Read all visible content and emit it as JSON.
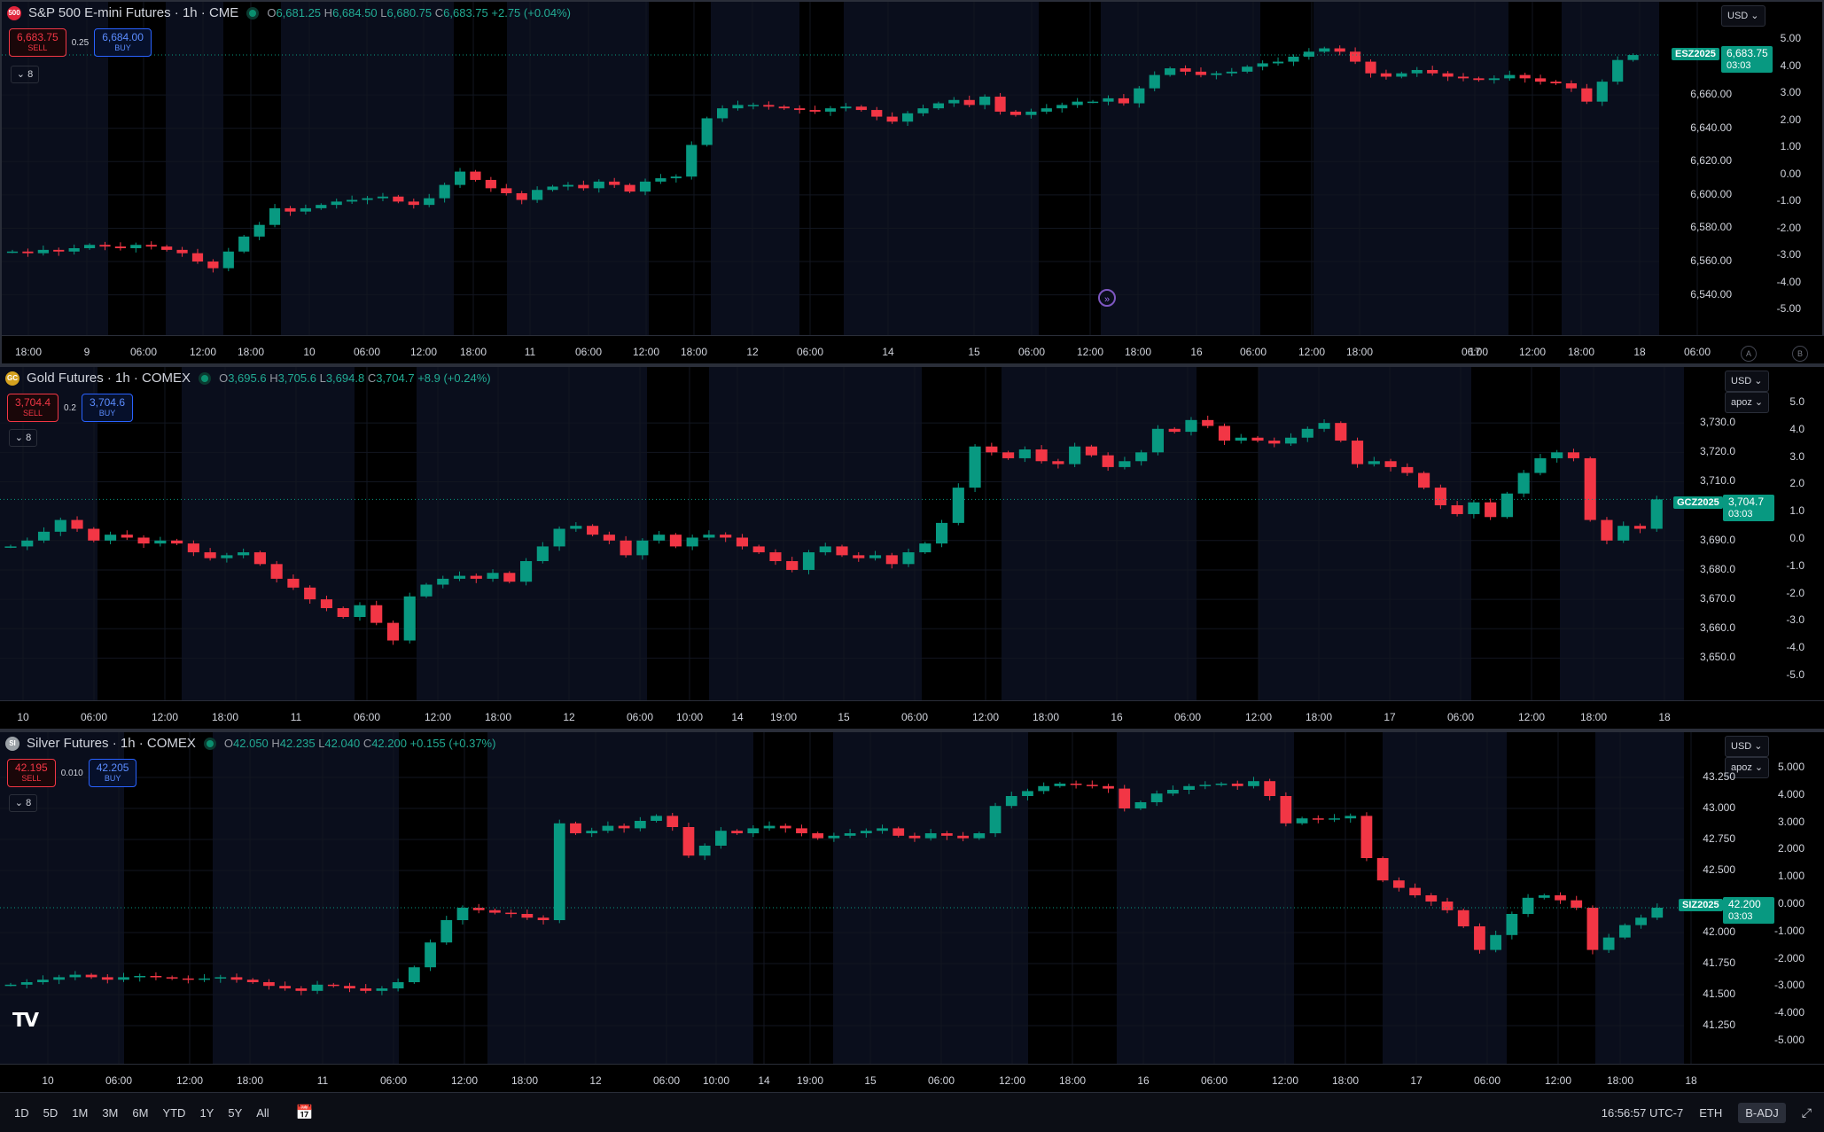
{
  "panes": [
    {
      "id": "es",
      "title": "S&P 500 E-mini Futures · 1h · CME",
      "icon_text": "500",
      "icon_color": "#e0243b",
      "open_label": "O",
      "open": "6,681.25",
      "high_label": "H",
      "high": "6,684.50",
      "low_label": "L",
      "low": "6,680.75",
      "close_label": "C",
      "close": "6,683.75",
      "change": "+2.75 (+0.04%)",
      "sell_price": "6,683.75",
      "sell_label": "SELL",
      "buy_price": "6,684.00",
      "buy_label": "BUY",
      "spread": "0.25",
      "collapse_label": "8",
      "currency": "USD",
      "symbol_code": "ESZ2025",
      "last_price": "6,683.75",
      "countdown": "03:03",
      "price_ticks": [
        "6,660.00",
        "6,640.00",
        "6,620.00",
        "6,600.00",
        "6,580.00",
        "6,560.00",
        "6,540.00"
      ],
      "pct_ticks": [
        "5.00",
        "4.00",
        "3.00",
        "2.00",
        "1.00",
        "0.00",
        "-1.00",
        "-2.00",
        "-3.00",
        "-4.00",
        "-5.00"
      ],
      "x_labels": [
        "18:00",
        "9",
        "06:00",
        "12:00",
        "18:00",
        "10",
        "06:00",
        "12:00",
        "18:00",
        "11",
        "06:00",
        "12:00",
        "18:00",
        "12",
        "06:00",
        "14",
        "15",
        "06:00",
        "12:00",
        "18:00",
        "16",
        "06:00",
        "12:00",
        "18:00",
        "17",
        "06:00",
        "12:00",
        "18:00",
        "18",
        "06:00"
      ],
      "corner_a": "A",
      "corner_b": "B",
      "series": [
        6566,
        6565,
        6567,
        6566,
        6568,
        6570,
        6569,
        6568,
        6570,
        6569,
        6567,
        6565,
        6560,
        6556,
        6566,
        6575,
        6582,
        6592,
        6590,
        6592,
        6594,
        6596,
        6597,
        6598,
        6599,
        6596,
        6594,
        6598,
        6606,
        6614,
        6609,
        6604,
        6601,
        6597,
        6603,
        6605,
        6606,
        6604,
        6608,
        6606,
        6602,
        6608,
        6610,
        6611,
        6630,
        6646,
        6652,
        6654,
        6654,
        6653,
        6652,
        6651,
        6650,
        6652,
        6653,
        6651,
        6647,
        6644,
        6649,
        6652,
        6655,
        6657,
        6654,
        6659,
        6650,
        6648,
        6650,
        6652,
        6654,
        6656,
        6656,
        6658,
        6655,
        6664,
        6672,
        6676,
        6674,
        6672,
        6673,
        6674,
        6677,
        6679,
        6680,
        6683,
        6686,
        6688,
        6686,
        6680,
        6673,
        6671,
        6673,
        6675,
        6673,
        6671,
        6670,
        6669,
        6670,
        6672,
        6670,
        6668,
        6667,
        6664,
        6656,
        6668,
        6681,
        6684
      ]
    },
    {
      "id": "gc",
      "title": "Gold Futures · 1h · COMEX",
      "icon_text": "GC",
      "icon_color": "#d4a11e",
      "open_label": "O",
      "open": "3,695.6",
      "high_label": "H",
      "high": "3,705.6",
      "low_label": "L",
      "low": "3,694.8",
      "close_label": "C",
      "close": "3,704.7",
      "change": "+8.9 (+0.24%)",
      "sell_price": "3,704.4",
      "sell_label": "SELL",
      "buy_price": "3,704.6",
      "buy_label": "BUY",
      "spread": "0.2",
      "collapse_label": "8",
      "currency": "USD",
      "scale_mode": "apoz",
      "symbol_code": "GCZ2025",
      "last_price": "3,704.7",
      "countdown": "03:03",
      "price_ticks": [
        "3,730.0",
        "3,720.0",
        "3,710.0",
        "3,690.0",
        "3,680.0",
        "3,670.0",
        "3,660.0",
        "3,650.0"
      ],
      "pct_ticks": [
        "5.0",
        "4.0",
        "3.0",
        "2.0",
        "1.0",
        "0.0",
        "-1.0",
        "-2.0",
        "-3.0",
        "-4.0",
        "-5.0"
      ],
      "x_labels": [
        "10",
        "06:00",
        "12:00",
        "18:00",
        "11",
        "06:00",
        "12:00",
        "18:00",
        "12",
        "06:00",
        "10:00",
        "14",
        "19:00",
        "15",
        "06:00",
        "12:00",
        "18:00",
        "16",
        "06:00",
        "12:00",
        "18:00",
        "17",
        "06:00",
        "12:00",
        "18:00",
        "18"
      ],
      "series": [
        3688,
        3690,
        3693,
        3697,
        3694,
        3690,
        3692,
        3691,
        3689,
        3690,
        3689,
        3686,
        3684,
        3685,
        3686,
        3682,
        3677,
        3674,
        3670,
        3667,
        3664,
        3668,
        3662,
        3656,
        3671,
        3675,
        3677,
        3678,
        3677,
        3679,
        3676,
        3683,
        3688,
        3694,
        3695,
        3692,
        3690,
        3685,
        3690,
        3692,
        3688,
        3691,
        3692,
        3691,
        3688,
        3686,
        3683,
        3680,
        3686,
        3688,
        3685,
        3684,
        3685,
        3682,
        3686,
        3689,
        3696,
        3708,
        3722,
        3720,
        3718,
        3721,
        3717,
        3716,
        3722,
        3719,
        3715,
        3717,
        3720,
        3728,
        3727,
        3731,
        3729,
        3724,
        3725,
        3724,
        3723,
        3725,
        3728,
        3730,
        3724,
        3716,
        3717,
        3715,
        3713,
        3708,
        3702,
        3699,
        3703,
        3698,
        3706,
        3713,
        3718,
        3720,
        3718,
        3697,
        3690,
        3695,
        3694,
        3704
      ]
    },
    {
      "id": "si",
      "title": "Silver Futures · 1h · COMEX",
      "icon_text": "SI",
      "icon_color": "#9aa0a6",
      "open_label": "O",
      "open": "42.050",
      "high_label": "H",
      "high": "42.235",
      "low_label": "L",
      "low": "42.040",
      "close_label": "C",
      "close": "42.200",
      "change": "+0.155 (+0.37%)",
      "sell_price": "42.195",
      "sell_label": "SELL",
      "buy_price": "42.205",
      "buy_label": "BUY",
      "spread": "0.010",
      "collapse_label": "8",
      "currency": "USD",
      "scale_mode": "apoz",
      "symbol_code": "SIZ2025",
      "last_price": "42.200",
      "countdown": "03:03",
      "price_ticks": [
        "43.250",
        "43.000",
        "42.750",
        "42.500",
        "42.000",
        "41.750",
        "41.500",
        "41.250"
      ],
      "pct_ticks": [
        "5.000",
        "4.000",
        "3.000",
        "2.000",
        "1.000",
        "0.000",
        "-1.000",
        "-2.000",
        "-3.000",
        "-4.000",
        "-5.000"
      ],
      "x_labels": [
        "10",
        "06:00",
        "12:00",
        "18:00",
        "11",
        "06:00",
        "12:00",
        "18:00",
        "12",
        "06:00",
        "10:00",
        "14",
        "19:00",
        "15",
        "06:00",
        "12:00",
        "18:00",
        "16",
        "06:00",
        "12:00",
        "18:00",
        "17",
        "06:00",
        "12:00",
        "18:00",
        "18"
      ],
      "series": [
        41.58,
        41.6,
        41.62,
        41.64,
        41.66,
        41.64,
        41.62,
        41.64,
        41.65,
        41.64,
        41.63,
        41.62,
        41.63,
        41.64,
        41.62,
        41.6,
        41.57,
        41.55,
        41.53,
        41.58,
        41.57,
        41.55,
        41.53,
        41.55,
        41.6,
        41.72,
        41.92,
        42.1,
        42.2,
        42.18,
        42.16,
        42.15,
        42.12,
        42.1,
        42.88,
        42.8,
        42.82,
        42.86,
        42.84,
        42.9,
        42.94,
        42.85,
        42.62,
        42.7,
        42.82,
        42.8,
        42.84,
        42.86,
        42.84,
        42.8,
        42.76,
        42.78,
        42.8,
        42.82,
        42.84,
        42.78,
        42.76,
        42.8,
        42.78,
        42.76,
        42.8,
        43.02,
        43.1,
        43.14,
        43.18,
        43.2,
        43.19,
        43.18,
        43.16,
        43.0,
        43.05,
        43.12,
        43.15,
        43.18,
        43.19,
        43.2,
        43.18,
        43.22,
        43.1,
        42.88,
        42.92,
        42.91,
        42.92,
        42.94,
        42.6,
        42.42,
        42.36,
        42.3,
        42.25,
        42.18,
        42.05,
        41.86,
        41.98,
        42.15,
        42.28,
        42.3,
        42.26,
        42.2,
        41.86,
        41.96,
        42.06,
        42.12,
        42.2
      ]
    }
  ],
  "bottom_bar": {
    "timeframes": [
      "1D",
      "5D",
      "1M",
      "3M",
      "6M",
      "YTD",
      "1Y",
      "5Y",
      "All"
    ],
    "clock": "16:56:57 UTC-7",
    "session": "ETH",
    "adjustment": "B-ADJ"
  },
  "colors": {
    "up": "#089981",
    "down": "#f23645",
    "bg": "#000000",
    "session_bg": "#0a0e1c",
    "grid": "#121620"
  }
}
